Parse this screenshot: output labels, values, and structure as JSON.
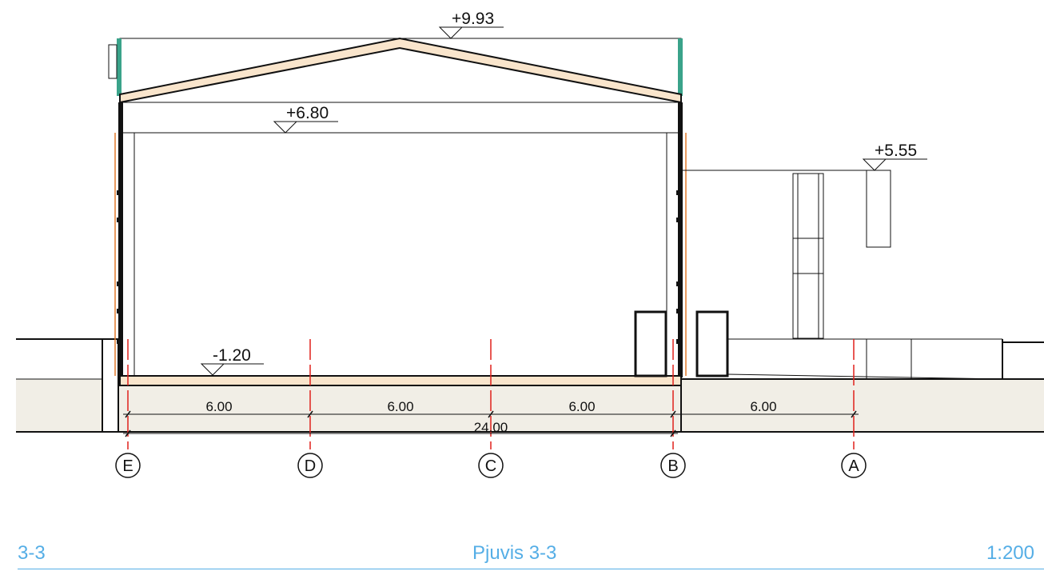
{
  "levels": {
    "ridge": "+9.93",
    "eaves": "+6.80",
    "annex": "+5.55",
    "floor": "-1.20"
  },
  "dimensions": {
    "spans": [
      "6.00",
      "6.00",
      "6.00",
      "6.00"
    ],
    "total": "24.00"
  },
  "grid_axes": [
    "E",
    "D",
    "C",
    "B",
    "A"
  ],
  "footer": {
    "section_id": "3-3",
    "title": "Pjuvis 3-3",
    "scale": "1:200"
  },
  "colors": {
    "footer_text": "#55aee6",
    "grid_line": "#e0201c",
    "ground_fill": "#f1eee6",
    "slab_fill": "#f9e5cc",
    "cladding": "#e07a2c",
    "roof_green": "#3aa38a"
  }
}
